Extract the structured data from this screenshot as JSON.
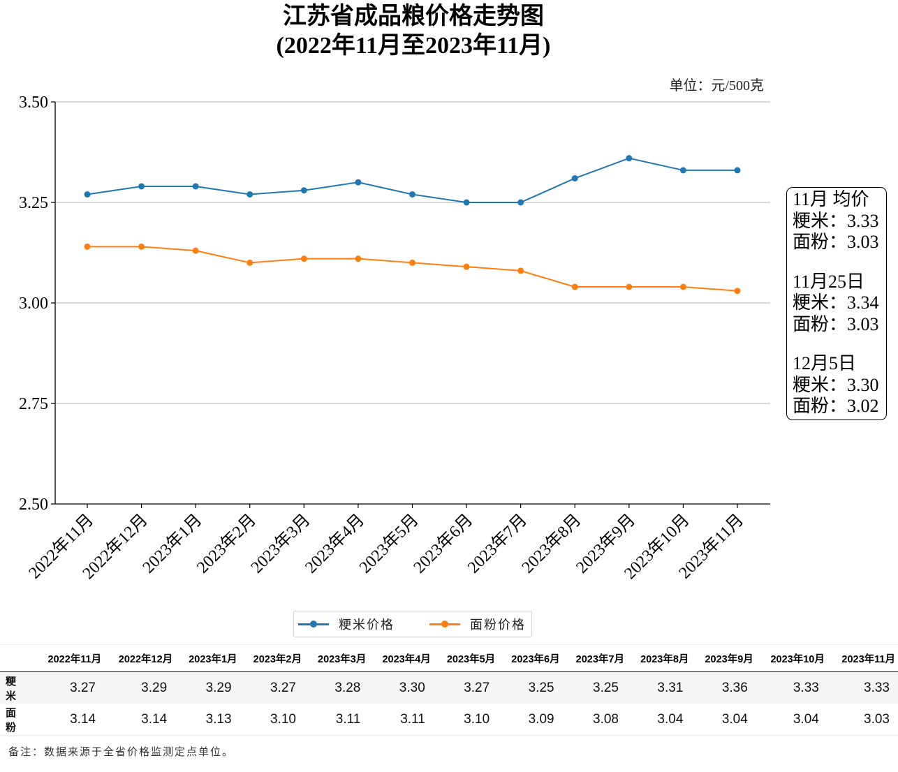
{
  "title_line1": "江苏省成品粮价格走势图",
  "title_line2": "(2022年11月至2023年11月)",
  "unit_label": "单位：元/500克",
  "chart_data": {
    "type": "line",
    "title": "江苏省成品粮价格走势图 (2022年11月至2023年11月)",
    "xlabel": "",
    "ylabel": "",
    "ylim": [
      2.5,
      3.5
    ],
    "yticks": [
      "3.50",
      "3.25",
      "3.00",
      "2.75",
      "2.50"
    ],
    "ytick_values": [
      3.5,
      3.25,
      3.0,
      2.75,
      2.5
    ],
    "grid": "y",
    "legend_position": "bottom-center",
    "categories": [
      "2022年11月",
      "2022年12月",
      "2023年1月",
      "2023年2月",
      "2023年3月",
      "2023年4月",
      "2023年5月",
      "2023年6月",
      "2023年7月",
      "2023年8月",
      "2023年9月",
      "2023年10月",
      "2023年11月"
    ],
    "series": [
      {
        "name": "粳米价格",
        "color": "#1f77b4",
        "values": [
          3.27,
          3.29,
          3.29,
          3.27,
          3.28,
          3.3,
          3.27,
          3.25,
          3.25,
          3.31,
          3.36,
          3.33,
          3.33
        ]
      },
      {
        "name": "面粉价格",
        "color": "#ff7f0e",
        "values": [
          3.14,
          3.14,
          3.13,
          3.1,
          3.11,
          3.11,
          3.1,
          3.09,
          3.08,
          3.04,
          3.04,
          3.04,
          3.03
        ]
      }
    ]
  },
  "info_box": [
    {
      "heading": "11月 均价",
      "rice": "粳米：3.33",
      "flour": "面粉：3.03"
    },
    {
      "heading": "11月25日",
      "rice": "粳米：3.34",
      "flour": "面粉：3.03"
    },
    {
      "heading": "12月5日",
      "rice": "粳米：3.30",
      "flour": "面粉：3.02"
    }
  ],
  "table": {
    "headers": [
      "2022年11月",
      "2022年12月",
      "2023年1月",
      "2023年2月",
      "2023年3月",
      "2023年4月",
      "2023年5月",
      "2023年6月",
      "2023年7月",
      "2023年8月",
      "2023年9月",
      "2023年10月",
      "2023年11月"
    ],
    "rows": [
      {
        "label": "粳米",
        "values": [
          "3.27",
          "3.29",
          "3.29",
          "3.27",
          "3.28",
          "3.30",
          "3.27",
          "3.25",
          "3.25",
          "3.31",
          "3.36",
          "3.33",
          "3.33"
        ]
      },
      {
        "label": "面粉",
        "values": [
          "3.14",
          "3.14",
          "3.13",
          "3.10",
          "3.11",
          "3.11",
          "3.10",
          "3.09",
          "3.08",
          "3.04",
          "3.04",
          "3.04",
          "3.03"
        ]
      }
    ]
  },
  "note": "备注：数据来源于全省价格监测定点单位。"
}
